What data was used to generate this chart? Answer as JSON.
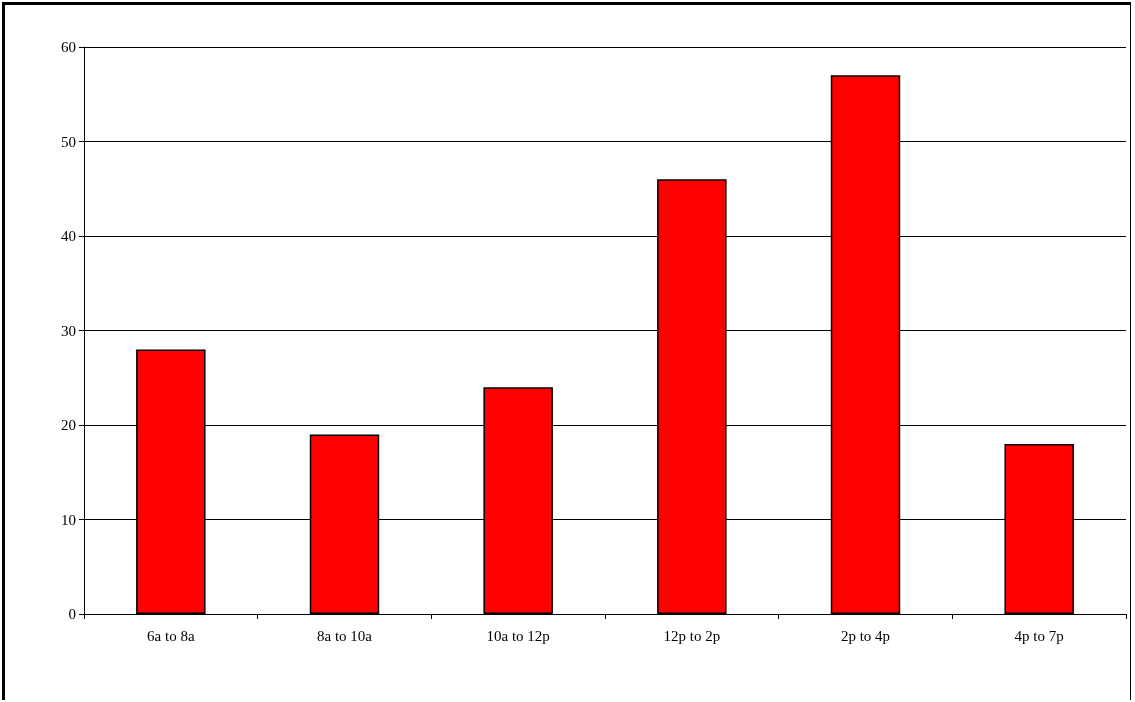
{
  "chart_data": {
    "type": "bar",
    "categories": [
      "6a to 8a",
      "8a to 10a",
      "10a to 12p",
      "12p to 2p",
      "2p to 4p",
      "4p to 7p"
    ],
    "values": [
      28,
      19,
      24,
      46,
      57,
      18
    ],
    "color": "#ff0000",
    "ylim": [
      0,
      60
    ],
    "yticks": [
      0,
      10,
      20,
      30,
      40,
      50,
      60
    ],
    "grid": "y"
  }
}
